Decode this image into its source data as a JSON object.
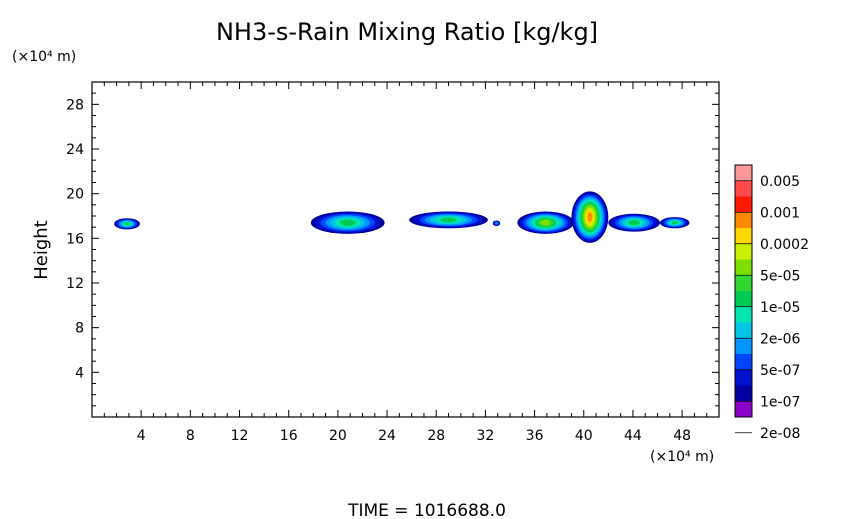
{
  "chart_data": {
    "type": "heatmap",
    "title": "NH3-s-Rain Mixing Ratio [kg/kg]",
    "ylabel": "Height",
    "xlabel": "",
    "x_unit": "(×10⁴ m)",
    "y_unit": "(×10⁴ m)",
    "xlim": [
      0,
      51
    ],
    "ylim": [
      0,
      30
    ],
    "xticks": [
      4,
      8,
      12,
      16,
      20,
      24,
      28,
      32,
      36,
      40,
      44,
      48
    ],
    "yticks": [
      4,
      8,
      12,
      16,
      20,
      24,
      28
    ],
    "time_label": "TIME = 1016688.0",
    "colorbar": {
      "labels": [
        "0.005",
        "0.001",
        "0.0002",
        "5e-05",
        "1e-05",
        "2e-06",
        "5e-07",
        "1e-07",
        "2e-08"
      ],
      "colors": [
        "#ff9999",
        "#ff4a4a",
        "#ff1a00",
        "#ff8a00",
        "#ffd700",
        "#c8f000",
        "#7ee000",
        "#33d633",
        "#00cc55",
        "#00e6b0",
        "#00c4e6",
        "#0095ff",
        "#0045ff",
        "#0010d0",
        "#0000a0",
        "#8a00c8"
      ]
    },
    "regions": [
      {
        "x": [
          1.8,
          3.9
        ],
        "y": [
          16.8,
          17.8
        ],
        "level": 8
      },
      {
        "x": [
          17.8,
          23.8
        ],
        "y": [
          16.4,
          18.4
        ],
        "level": 8
      },
      {
        "x": [
          25.8,
          32.2
        ],
        "y": [
          16.9,
          18.4
        ],
        "level": 8
      },
      {
        "x": [
          32.6,
          33.2
        ],
        "y": [
          17.1,
          17.6
        ],
        "level": 11
      },
      {
        "x": [
          34.6,
          39.2
        ],
        "y": [
          16.4,
          18.4
        ],
        "level": 6
      },
      {
        "x": [
          39.0,
          42.0
        ],
        "y": [
          15.6,
          20.2
        ],
        "level": 3
      },
      {
        "x": [
          42.0,
          46.2
        ],
        "y": [
          16.6,
          18.2
        ],
        "level": 8
      },
      {
        "x": [
          46.2,
          48.6
        ],
        "y": [
          16.9,
          17.9
        ],
        "level": 8
      }
    ]
  }
}
